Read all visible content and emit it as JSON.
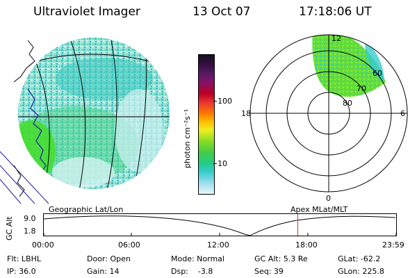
{
  "header": {
    "title": "Ultraviolet Imager",
    "date": "13 Oct 07",
    "time": "17:18:06 UT"
  },
  "colorbar": {
    "label": "photon cm⁻²s⁻¹",
    "ticks": [
      "100",
      "10"
    ]
  },
  "polar": {
    "mlt_labels": [
      "12",
      "18",
      "6",
      "0"
    ],
    "lat_labels": [
      "60",
      "70",
      "80"
    ]
  },
  "timeline": {
    "left_label": "Geographic Lat/Lon",
    "right_label": "Apex MLat/MLT",
    "yaxis_title": "GC Alt",
    "ytick_top": "9.0",
    "ytick_bottom": "1.8",
    "xticks": [
      "00:00",
      "06:00",
      "12:00",
      "18:00",
      "23:59"
    ],
    "current_time_fraction": 0.7209
  },
  "info": {
    "flt": "Flt: LBHL",
    "ip": "IP: 36.0",
    "door": "Door: Open",
    "gain": "Gain: 14",
    "mode": "Mode: Normal",
    "dsp": "Dsp:    -3.8",
    "gcalt": "GC Alt: 5.3 Re",
    "seq": "Seq: 39",
    "glat": "GLat: -62.2",
    "glon": "GLon: 225.8"
  },
  "colors": {
    "aurora_green": "#44dd22",
    "aurora_cyan": "#33cccc",
    "background_cyan": "#ccefef",
    "marker": "#cc3333",
    "coastline": "#1a1aaa"
  }
}
